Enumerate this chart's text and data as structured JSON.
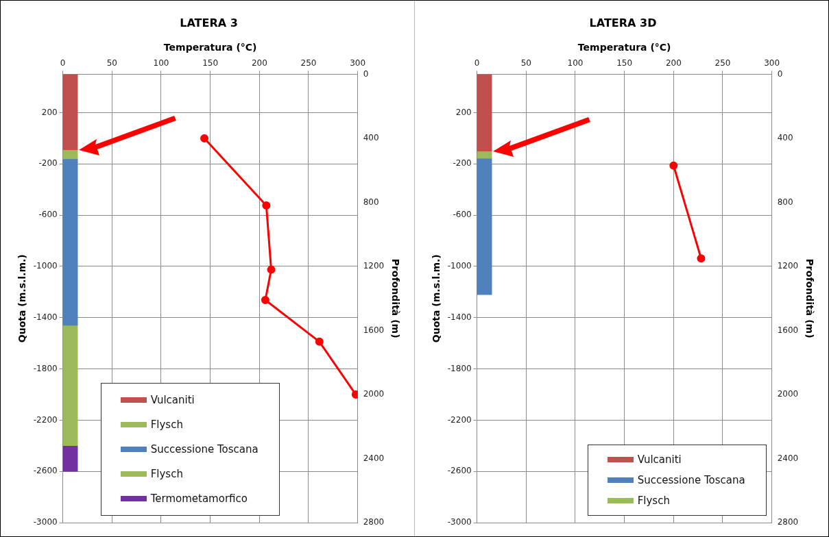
{
  "chart_data": [
    {
      "type": "line",
      "title": "LATERA 3",
      "xlabel": "Temperatura (°C)",
      "ylabel": "Quota (m.s.l.m.)",
      "y2label": "Profondità (m)",
      "xlim": [
        0,
        300
      ],
      "xticks": [
        0,
        50,
        100,
        150,
        200,
        250,
        300
      ],
      "ylim": [
        -3000,
        500
      ],
      "yticks": [
        200,
        -200,
        -600,
        -1000,
        -1400,
        -1800,
        -2200,
        -2600,
        -3000
      ],
      "y2lim": [
        2800,
        0
      ],
      "y2ticks": [
        0,
        400,
        800,
        1200,
        1600,
        2000,
        2400,
        2800
      ],
      "grid": true,
      "legend": "bottom left",
      "marker": "circle",
      "line_style": "solid",
      "series": [
        {
          "name": "Vulcaniti",
          "type": "bar",
          "color": "#c0504d",
          "x": [
            7.5
          ],
          "base": [
            500
          ],
          "values": [
            -590
          ]
        },
        {
          "name": "Flysch",
          "type": "bar",
          "color": "#9bbb59",
          "x": [
            7.5
          ],
          "base": [
            -90
          ],
          "values": [
            -70
          ]
        },
        {
          "name": "Successione Toscana",
          "type": "bar",
          "color": "#4f81bd",
          "x": [
            7.5
          ],
          "base": [
            -160
          ],
          "values": [
            -1300
          ]
        },
        {
          "name": "Flysch",
          "type": "bar",
          "color": "#9bbb59",
          "x": [
            7.5
          ],
          "base": [
            -1460
          ],
          "values": [
            -940
          ]
        },
        {
          "name": "Termometamorfico",
          "type": "bar",
          "color": "#7030a0",
          "x": [
            7.5
          ],
          "base": [
            -2400
          ],
          "values": [
            -200
          ]
        },
        {
          "axis": "y2",
          "color": "#ff0000",
          "x": [
            144,
            207,
            212,
            206,
            261,
            298
          ],
          "values": [
            400,
            820,
            1220,
            1410,
            1670,
            2000
          ]
        }
      ]
    },
    {
      "type": "line",
      "title": "LATERA 3D",
      "xlabel": "Temperatura (°C)",
      "ylabel": "Quota (m.s.l.m.)",
      "y2label": "Profondità (m)",
      "xlim": [
        0,
        300
      ],
      "xticks": [
        0,
        50,
        100,
        150,
        200,
        250,
        300
      ],
      "ylim": [
        -3000,
        500
      ],
      "yticks": [
        200,
        -200,
        -600,
        -1000,
        -1400,
        -1800,
        -2200,
        -2600,
        -3000
      ],
      "y2lim": [
        2800,
        0
      ],
      "y2ticks": [
        0,
        400,
        800,
        1200,
        1600,
        2000,
        2400,
        2800
      ],
      "grid": true,
      "legend": "bottom right",
      "marker": "circle",
      "line_style": "solid",
      "series": [
        {
          "name": "Vulcaniti",
          "type": "bar",
          "color": "#c0504d",
          "x": [
            7.5
          ],
          "base": [
            500
          ],
          "values": [
            -600
          ]
        },
        {
          "name": "Successione Toscana",
          "type": "bar",
          "color": "#4f81bd",
          "x": [
            7.5
          ],
          "base": [
            -160
          ],
          "values": [
            -1060
          ]
        },
        {
          "name": "Flysch",
          "type": "bar",
          "color": "#9bbb59",
          "x": [
            7.5
          ],
          "base": [
            -100
          ],
          "values": [
            -60
          ]
        },
        {
          "axis": "y2",
          "color": "#ff0000",
          "x": [
            200,
            228
          ],
          "values": [
            570,
            1150
          ]
        }
      ]
    }
  ]
}
